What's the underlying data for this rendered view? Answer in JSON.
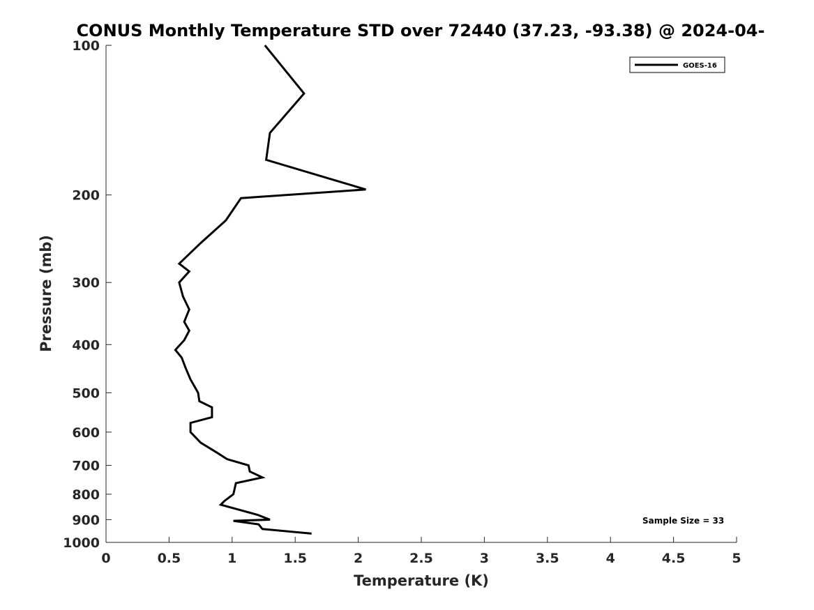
{
  "chart_data": {
    "type": "line",
    "title": "CONUS Monthly Temperature STD over 72440 (37.23, -93.38) @ 2024-04-",
    "xlabel": "Temperature (K)",
    "ylabel": "Pressure (mb)",
    "xlim": [
      0,
      5
    ],
    "ylim": [
      100,
      1000
    ],
    "y_scale": "log",
    "y_reversed": true,
    "xticks": [
      0,
      0.5,
      1,
      1.5,
      2,
      2.5,
      3,
      3.5,
      4,
      4.5,
      5
    ],
    "xtick_labels": [
      "0",
      "0.5",
      "1",
      "1.5",
      "2",
      "2.5",
      "3",
      "3.5",
      "4",
      "4.5",
      "5"
    ],
    "yticks": [
      100,
      200,
      300,
      400,
      500,
      600,
      700,
      800,
      900,
      1000
    ],
    "ytick_labels": [
      "100",
      "200",
      "300",
      "400",
      "500",
      "600",
      "700",
      "800",
      "900",
      "1000"
    ],
    "grid": false,
    "legend_position": "top-right",
    "series": [
      {
        "name": "GOES-16",
        "color": "#000000",
        "points": [
          [
            1.26,
            100
          ],
          [
            1.57,
            125
          ],
          [
            1.3,
            150
          ],
          [
            1.27,
            170
          ],
          [
            2.06,
            195
          ],
          [
            1.07,
            203
          ],
          [
            0.95,
            225
          ],
          [
            0.75,
            250
          ],
          [
            0.58,
            275
          ],
          [
            0.66,
            285
          ],
          [
            0.58,
            300
          ],
          [
            0.61,
            320
          ],
          [
            0.66,
            340
          ],
          [
            0.62,
            360
          ],
          [
            0.66,
            375
          ],
          [
            0.62,
            392
          ],
          [
            0.55,
            410
          ],
          [
            0.6,
            425
          ],
          [
            0.63,
            445
          ],
          [
            0.67,
            470
          ],
          [
            0.73,
            500
          ],
          [
            0.74,
            520
          ],
          [
            0.84,
            535
          ],
          [
            0.84,
            560
          ],
          [
            0.67,
            575
          ],
          [
            0.67,
            600
          ],
          [
            0.75,
            630
          ],
          [
            0.88,
            660
          ],
          [
            0.96,
            680
          ],
          [
            1.13,
            700
          ],
          [
            1.14,
            720
          ],
          [
            1.24,
            740
          ],
          [
            1.03,
            760
          ],
          [
            1.01,
            800
          ],
          [
            0.94,
            825
          ],
          [
            0.91,
            840
          ],
          [
            1.2,
            880
          ],
          [
            1.3,
            900
          ],
          [
            1.01,
            905
          ],
          [
            1.21,
            920
          ],
          [
            1.24,
            940
          ],
          [
            1.63,
            960
          ]
        ]
      }
    ],
    "annotations": [
      "Sample Size = 33"
    ]
  }
}
